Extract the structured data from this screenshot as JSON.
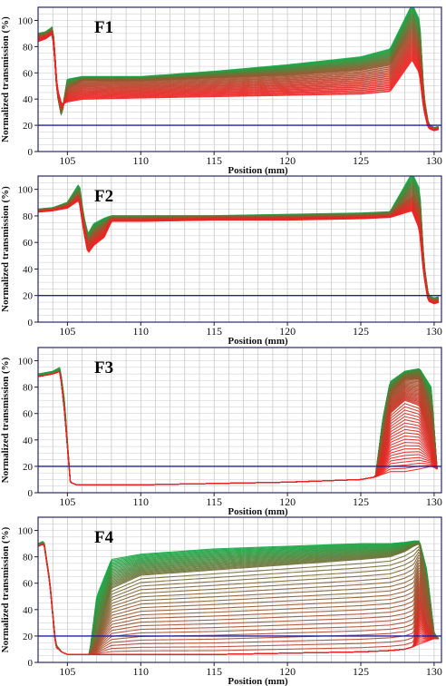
{
  "chart_data": [
    {
      "type": "line",
      "title": "F1",
      "xlabel": "Position (mm)",
      "ylabel": "Normalized transmission (%)",
      "xlim": [
        103,
        130.5
      ],
      "ylim": [
        0,
        110
      ],
      "x_ticks": [
        105,
        110,
        115,
        120,
        125,
        130
      ],
      "y_ticks": [
        0,
        20,
        40,
        60,
        80,
        100
      ],
      "grid": true,
      "reference_line": 20,
      "colors": {
        "early": "#11aa44",
        "late": "#ee2222",
        "reference": "#2020a0"
      },
      "series": [
        {
          "x": [
            103,
            103.5,
            104,
            104.15,
            104.3,
            104.6,
            105,
            106,
            110,
            115,
            120,
            125,
            127,
            128.5,
            129.0,
            129.3,
            129.6,
            130,
            130.3
          ],
          "y": [
            84,
            86,
            90,
            70,
            48,
            36,
            38,
            40,
            41,
            42,
            43,
            44,
            46,
            70,
            60,
            32,
            18,
            16,
            17
          ]
        },
        {
          "x": [
            103,
            103.5,
            104,
            104.15,
            104.3,
            104.6,
            105,
            106,
            110,
            115,
            120,
            125,
            127,
            128.5,
            129.0,
            129.3,
            129.6,
            130,
            130.3
          ],
          "y": [
            88,
            89,
            92,
            70,
            45,
            30,
            48,
            54,
            54,
            56,
            58,
            62,
            66,
            92,
            80,
            38,
            20,
            17,
            18
          ]
        },
        {
          "x": [
            103,
            103.5,
            104,
            104.15,
            104.3,
            104.6,
            105,
            106,
            110,
            115,
            120,
            125,
            127,
            128.5,
            129.0,
            129.3,
            129.6,
            130,
            130.3
          ],
          "y": [
            90,
            91,
            95,
            72,
            45,
            27,
            55,
            57,
            57,
            61,
            66,
            72,
            78,
            112,
            100,
            42,
            21,
            18,
            19
          ]
        }
      ]
    },
    {
      "type": "line",
      "title": "F2",
      "xlabel": "Position (mm)",
      "ylabel": "Normalized transmission (%)",
      "xlim": [
        103,
        130.5
      ],
      "ylim": [
        0,
        110
      ],
      "x_ticks": [
        105,
        110,
        115,
        120,
        125,
        130
      ],
      "y_ticks": [
        0,
        20,
        40,
        60,
        80,
        100
      ],
      "grid": true,
      "reference_line": 20,
      "colors": {
        "early": "#11aa44",
        "late": "#ee2222",
        "reference": "#2020a0"
      },
      "series": [
        {
          "x": [
            103,
            104,
            105,
            105.8,
            106.1,
            106.4,
            106.8,
            107.5,
            108,
            110,
            115,
            120,
            125,
            127,
            128.5,
            129.0,
            129.3,
            129.6,
            130,
            130.3
          ],
          "y": [
            83,
            84,
            86,
            92,
            70,
            52,
            58,
            64,
            76,
            76,
            77,
            77,
            78,
            79,
            84,
            70,
            36,
            16,
            14,
            15
          ]
        },
        {
          "x": [
            103,
            104,
            105,
            105.8,
            106.1,
            106.4,
            106.8,
            107.5,
            108,
            110,
            115,
            120,
            125,
            127,
            128.5,
            129.0,
            129.3,
            129.6,
            130,
            130.3
          ],
          "y": [
            84,
            85,
            88,
            96,
            75,
            60,
            66,
            72,
            78,
            78,
            79,
            79,
            80,
            81,
            95,
            85,
            40,
            18,
            16,
            17
          ]
        },
        {
          "x": [
            103,
            104,
            105,
            105.8,
            106.1,
            106.4,
            106.8,
            107.5,
            108,
            110,
            115,
            120,
            125,
            127,
            128.5,
            129.0,
            129.3,
            129.6,
            130,
            130.3
          ],
          "y": [
            85,
            86,
            90,
            104,
            80,
            66,
            74,
            78,
            80,
            80,
            80,
            81,
            82,
            83,
            112,
            100,
            44,
            20,
            18,
            19
          ]
        }
      ]
    },
    {
      "type": "line",
      "title": "F3",
      "xlabel": "Position (mm)",
      "ylabel": "Normalized transmission (%)",
      "xlim": [
        103,
        130.5
      ],
      "ylim": [
        0,
        110
      ],
      "x_ticks": [
        105,
        110,
        115,
        120,
        125,
        130
      ],
      "y_ticks": [
        0,
        20,
        40,
        60,
        80,
        100
      ],
      "grid": true,
      "reference_line": 20,
      "colors": {
        "early": "#11aa44",
        "late": "#ee2222",
        "reference": "#2020a0"
      },
      "series": [
        {
          "x": [
            103,
            104,
            104.5,
            104.8,
            105.2,
            105.6,
            106,
            107,
            108,
            110,
            115,
            120,
            125,
            126,
            126.5,
            127,
            128,
            129,
            129.8,
            130.2
          ],
          "y": [
            88,
            90,
            92,
            62,
            8,
            6,
            6,
            6,
            6,
            6,
            7,
            8,
            10,
            12,
            14,
            16,
            16,
            18,
            20,
            18
          ]
        },
        {
          "x": [
            103,
            104,
            104.5,
            104.8,
            105.2,
            105.6,
            106,
            107,
            108,
            110,
            115,
            120,
            125,
            126,
            126.5,
            127,
            128,
            129,
            129.8,
            130.2
          ],
          "y": [
            88,
            90,
            92,
            62,
            8,
            6,
            6,
            6,
            6,
            6,
            7,
            8,
            10,
            12,
            30,
            60,
            70,
            66,
            40,
            18
          ]
        },
        {
          "x": [
            103,
            104,
            104.5,
            104.8,
            105.2,
            105.6,
            106,
            107,
            108,
            110,
            115,
            120,
            125,
            126,
            126.5,
            127,
            128,
            129,
            129.8,
            130.2
          ],
          "y": [
            88,
            90,
            92,
            62,
            8,
            6,
            6,
            6,
            6,
            6,
            7,
            8,
            10,
            12,
            44,
            74,
            86,
            86,
            60,
            18
          ]
        },
        {
          "x": [
            103,
            104,
            104.5,
            104.8,
            105.2,
            105.6,
            106,
            107,
            108,
            110,
            115,
            120,
            125,
            126,
            126.5,
            127,
            128,
            129,
            129.8,
            130.2
          ],
          "y": [
            88,
            90,
            92,
            62,
            8,
            6,
            6,
            6,
            6,
            6,
            7,
            8,
            10,
            12,
            50,
            80,
            90,
            92,
            70,
            18
          ]
        },
        {
          "x": [
            103,
            104,
            104.5,
            104.8,
            105.2,
            105.6,
            106,
            107,
            108,
            110,
            115,
            120,
            125,
            126,
            126.5,
            127,
            128,
            129,
            129.8,
            130.2
          ],
          "y": [
            90,
            92,
            95,
            70,
            8,
            6,
            6,
            6,
            6,
            6,
            7,
            8,
            10,
            12,
            56,
            84,
            92,
            94,
            80,
            18
          ]
        }
      ]
    },
    {
      "type": "line",
      "title": "F4",
      "xlabel": "Position (mm)",
      "ylabel": "Normalized transmission (%)",
      "xlim": [
        103,
        130.5
      ],
      "ylim": [
        0,
        110
      ],
      "x_ticks": [
        105,
        110,
        115,
        120,
        125,
        130
      ],
      "y_ticks": [
        0,
        20,
        40,
        60,
        80,
        100
      ],
      "grid": true,
      "reference_line": 20,
      "colors": {
        "early": "#11aa44",
        "late": "#ee2222",
        "reference": "#2020a0"
      },
      "series": [
        {
          "x": [
            103,
            103.4,
            103.8,
            104.2,
            104.6,
            105,
            106,
            106.5,
            107,
            108,
            110,
            115,
            120,
            125,
            127,
            128,
            128.6,
            129,
            129.5,
            130,
            130.3
          ],
          "y": [
            88,
            90,
            60,
            12,
            8,
            6,
            6,
            6,
            6,
            6,
            6,
            6,
            7,
            8,
            9,
            10,
            12,
            14,
            16,
            18,
            18
          ]
        },
        {
          "x": [
            103,
            103.4,
            103.8,
            104.2,
            104.6,
            105,
            106,
            106.5,
            107,
            108,
            110,
            115,
            120,
            125,
            127,
            128,
            128.6,
            129,
            129.5,
            130,
            130.3
          ],
          "y": [
            88,
            90,
            60,
            12,
            8,
            6,
            6,
            6,
            6,
            6,
            6,
            6,
            7,
            8,
            9,
            10,
            12,
            50,
            30,
            18,
            18
          ]
        },
        {
          "x": [
            103,
            103.4,
            103.8,
            104.2,
            104.6,
            105,
            106,
            106.5,
            107,
            108,
            110,
            115,
            120,
            125,
            127,
            128,
            128.6,
            129,
            129.5,
            130,
            130.3
          ],
          "y": [
            88,
            90,
            60,
            12,
            8,
            6,
            6,
            6,
            20,
            56,
            66,
            70,
            74,
            78,
            80,
            84,
            88,
            90,
            60,
            20,
            18
          ]
        },
        {
          "x": [
            103,
            103.4,
            103.8,
            104.2,
            104.6,
            105,
            106,
            106.5,
            107,
            108,
            110,
            115,
            120,
            125,
            127,
            128,
            128.6,
            129,
            129.5,
            130,
            130.3
          ],
          "y": [
            90,
            92,
            62,
            14,
            8,
            6,
            6,
            6,
            50,
            78,
            82,
            86,
            88,
            90,
            90,
            91,
            92,
            92,
            70,
            22,
            18
          ]
        }
      ]
    }
  ]
}
